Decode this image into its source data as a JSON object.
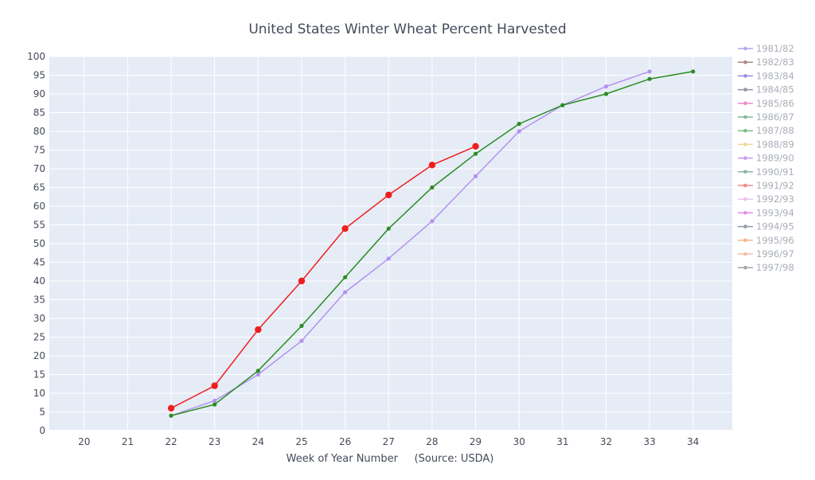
{
  "chart_data": {
    "type": "line",
    "title": "United States Winter Wheat Percent Harvested",
    "xlabel": "Week of Year Number     (Source: USDA)",
    "ylabel": "",
    "xlim": [
      19.2,
      34.9
    ],
    "ylim": [
      0,
      100
    ],
    "x_ticks": [
      20,
      21,
      22,
      23,
      24,
      25,
      26,
      27,
      28,
      29,
      30,
      31,
      32,
      33,
      34
    ],
    "y_ticks": [
      0,
      5,
      10,
      15,
      20,
      25,
      30,
      35,
      40,
      45,
      50,
      55,
      60,
      65,
      70,
      75,
      80,
      85,
      90,
      95,
      100
    ],
    "grid": true,
    "legend_position": "right",
    "legend": [
      {
        "name": "1981/82",
        "color": "#b7a6e8"
      },
      {
        "name": "1982/83",
        "color": "#a98a7e"
      },
      {
        "name": "1983/84",
        "color": "#9b8ce0"
      },
      {
        "name": "1984/85",
        "color": "#8f94a8"
      },
      {
        "name": "1985/86",
        "color": "#e88ad0"
      },
      {
        "name": "1986/87",
        "color": "#7fb89b"
      },
      {
        "name": "1987/88",
        "color": "#79c07e"
      },
      {
        "name": "1988/89",
        "color": "#f2d69a"
      },
      {
        "name": "1989/90",
        "color": "#c99bef"
      },
      {
        "name": "1990/91",
        "color": "#88b7a0"
      },
      {
        "name": "1991/92",
        "color": "#ee8a8a"
      },
      {
        "name": "1992/93",
        "color": "#efc1ef"
      },
      {
        "name": "1993/94",
        "color": "#e48ae8"
      },
      {
        "name": "1994/95",
        "color": "#8f9aa6"
      },
      {
        "name": "1995/96",
        "color": "#f2b48a"
      },
      {
        "name": "1996/97",
        "color": "#eec0a8"
      },
      {
        "name": "1997/98",
        "color": "#a6a6a6"
      }
    ],
    "series": [
      {
        "color": "#b491f0",
        "marker_size": 2.6,
        "x": [
          22,
          23,
          24,
          25,
          26,
          27,
          28,
          29,
          30,
          31,
          32,
          33
        ],
        "y": [
          4,
          8,
          15,
          24,
          37,
          46,
          56,
          68,
          80,
          87,
          92,
          96
        ]
      },
      {
        "color": "#2a8c22",
        "marker_size": 2.6,
        "x": [
          22,
          23,
          24,
          25,
          26,
          27,
          28,
          29,
          30,
          31,
          32,
          33,
          34
        ],
        "y": [
          4,
          7,
          16,
          28,
          41,
          54,
          65,
          74,
          82,
          87,
          90,
          94,
          96
        ]
      },
      {
        "color": "#f01e1e",
        "marker_size": 4.2,
        "x": [
          22,
          23,
          24,
          25,
          26,
          27,
          28,
          29
        ],
        "y": [
          6,
          12,
          27,
          40,
          54,
          63,
          71,
          76
        ]
      }
    ]
  }
}
